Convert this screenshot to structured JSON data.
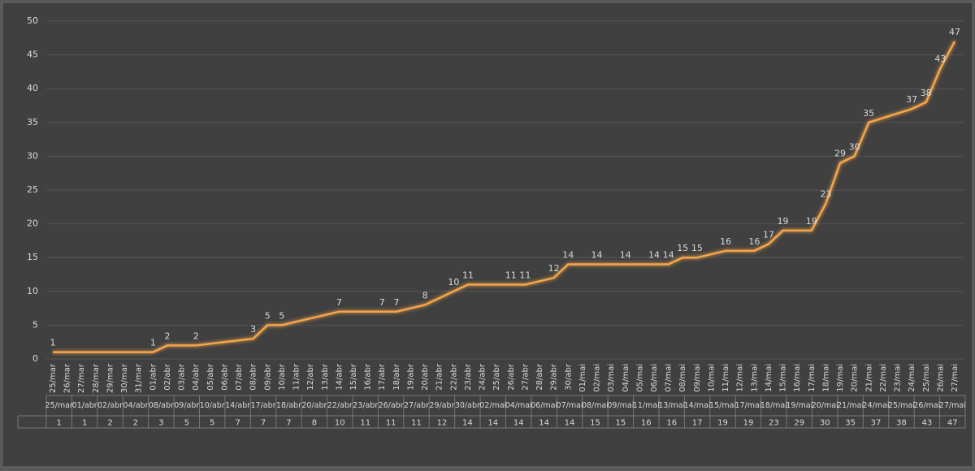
{
  "chart_data": {
    "type": "line",
    "categories": [
      "25/mar",
      "26/mar",
      "27/mar",
      "28/mar",
      "29/mar",
      "30/mar",
      "31/mar",
      "01/abr",
      "02/abr",
      "03/abr",
      "04/abr",
      "05/abr",
      "06/abr",
      "07/abr",
      "08/abr",
      "09/abr",
      "10/abr",
      "11/abr",
      "12/abr",
      "13/abr",
      "14/abr",
      "15/abr",
      "16/abr",
      "17/abr",
      "18/abr",
      "19/abr",
      "20/abr",
      "21/abr",
      "22/abr",
      "23/abr",
      "24/abr",
      "25/abr",
      "26/abr",
      "27/abr",
      "28/abr",
      "29/abr",
      "30/abr",
      "01/mai",
      "02/mai",
      "03/mai",
      "04/mai",
      "05/mai",
      "06/mai",
      "07/mai",
      "08/mai",
      "09/mai",
      "10/mai",
      "11/mai",
      "12/mai",
      "13/mai",
      "14/mai",
      "15/mai",
      "16/mai",
      "17/mai",
      "18/mai",
      "19/mai",
      "20/mai",
      "21/mai",
      "22/mai",
      "23/mai",
      "24/mai",
      "25/mai",
      "26/mai",
      "27/mai"
    ],
    "series": [
      {
        "color": "#f5a54a",
        "x": [
          "25/mar",
          "01/abr",
          "02/abr",
          "04/abr",
          "08/abr",
          "09/abr",
          "10/abr",
          "14/abr",
          "17/abr",
          "18/abr",
          "20/abr",
          "22/abr",
          "23/abr",
          "26/abr",
          "27/abr",
          "29/abr",
          "30/abr",
          "02/mai",
          "04/mai",
          "06/mai",
          "07/mai",
          "08/mai",
          "09/mai",
          "11/mai",
          "13/mai",
          "14/mai",
          "15/mai",
          "17/mai",
          "18/mai",
          "19/mai",
          "20/mai",
          "21/mai",
          "24/mai",
          "25/mai",
          "26/mai",
          "27/mai"
        ],
        "values": [
          1,
          1,
          2,
          2,
          3,
          5,
          5,
          7,
          7,
          7,
          8,
          10,
          11,
          11,
          11,
          12,
          14,
          14,
          14,
          14,
          14,
          15,
          15,
          16,
          16,
          17,
          19,
          19,
          23,
          29,
          30,
          35,
          37,
          38,
          43,
          47
        ]
      }
    ],
    "ylim": [
      0,
      50
    ],
    "yticks": [
      0,
      5,
      10,
      15,
      20,
      25,
      30,
      35,
      40,
      45,
      50
    ],
    "grid": true
  }
}
